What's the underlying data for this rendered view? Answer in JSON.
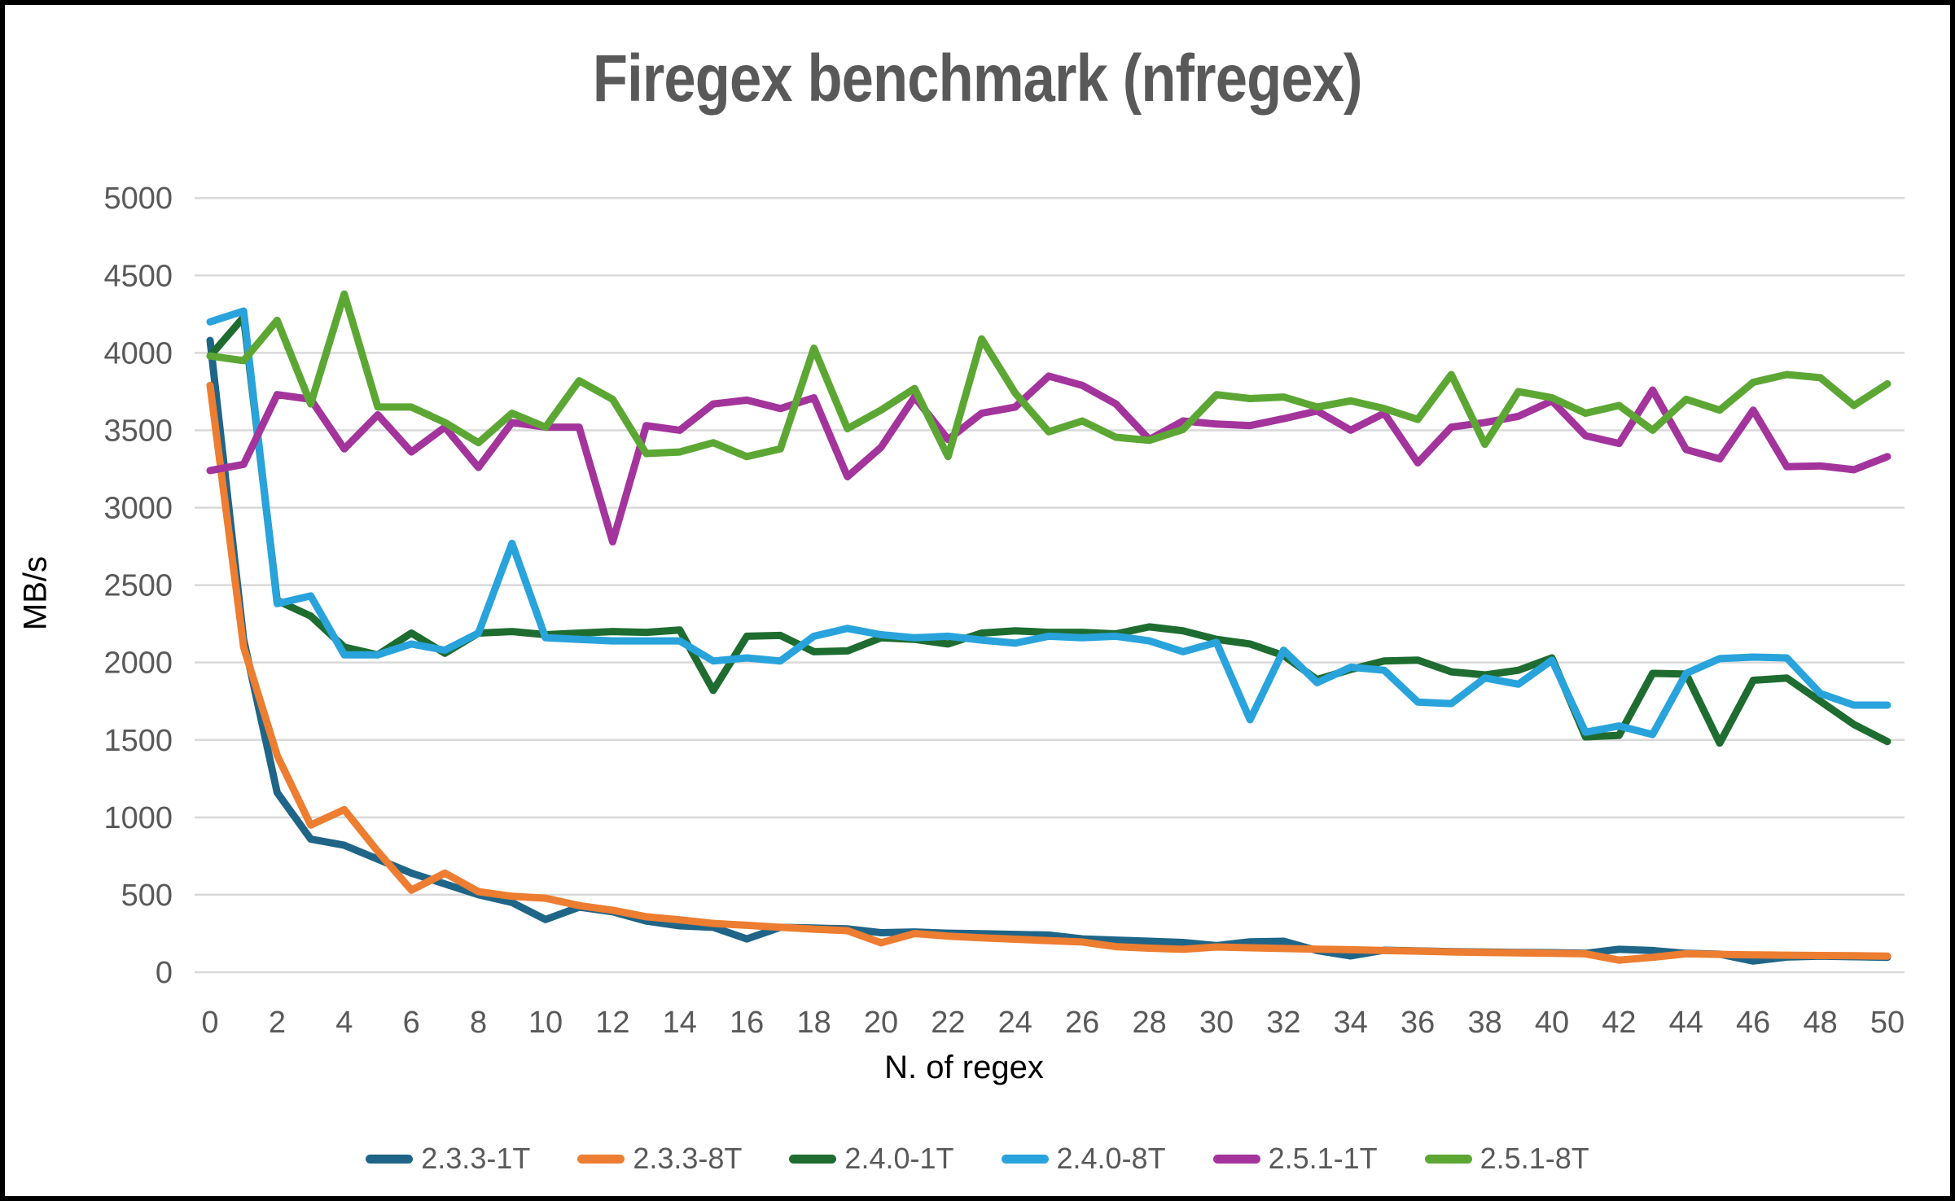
{
  "title": "Firegex benchmark (nfregex)",
  "colors": {
    "title_text": "#595959",
    "axis_tick_text": "#595959",
    "axis_title_text": "#000000",
    "gridline": "#D9D9D9",
    "frame_border": "#000000",
    "background": "#FFFFFF"
  },
  "chart_data": {
    "type": "line",
    "title": "Firegex benchmark (nfregex)",
    "xlabel": "N. of regex",
    "ylabel": "MB/s",
    "ylim": [
      0,
      5000
    ],
    "y_ticks": [
      0,
      500,
      1000,
      1500,
      2000,
      2500,
      3000,
      3500,
      4000,
      4500,
      5000
    ],
    "x_ticks": [
      0,
      2,
      4,
      6,
      8,
      10,
      12,
      14,
      16,
      18,
      20,
      22,
      24,
      26,
      28,
      30,
      32,
      34,
      36,
      38,
      40,
      42,
      44,
      46,
      48,
      50
    ],
    "x": [
      0,
      1,
      2,
      3,
      4,
      5,
      6,
      7,
      8,
      9,
      10,
      11,
      12,
      13,
      14,
      15,
      16,
      17,
      18,
      19,
      20,
      21,
      22,
      23,
      24,
      25,
      26,
      27,
      28,
      29,
      30,
      31,
      32,
      33,
      34,
      35,
      36,
      37,
      38,
      39,
      40,
      41,
      42,
      43,
      44,
      45,
      46,
      47,
      48,
      49,
      50
    ],
    "grid": true,
    "legend_position": "bottom",
    "series": [
      {
        "name": "2.3.3-1T",
        "color": "#1F6587",
        "values": [
          4080,
          2150,
          1160,
          860,
          820,
          730,
          640,
          570,
          500,
          450,
          340,
          420,
          390,
          330,
          300,
          290,
          215,
          290,
          285,
          280,
          255,
          260,
          252,
          248,
          244,
          240,
          215,
          207,
          200,
          192,
          172,
          196,
          200,
          140,
          105,
          142,
          137,
          133,
          130,
          128,
          126,
          122,
          148,
          140,
          122,
          116,
          72,
          98,
          104,
          100,
          96
        ]
      },
      {
        "name": "2.3.3-8T",
        "color": "#ED7D31",
        "values": [
          3790,
          2100,
          1400,
          950,
          1050,
          780,
          530,
          640,
          520,
          490,
          478,
          430,
          400,
          358,
          338,
          315,
          303,
          290,
          278,
          268,
          190,
          250,
          233,
          222,
          213,
          204,
          195,
          165,
          155,
          148,
          163,
          158,
          153,
          149,
          145,
          140,
          136,
          131,
          128,
          125,
          122,
          119,
          78,
          96,
          119,
          115,
          112,
          110,
          108,
          106,
          104
        ]
      },
      {
        "name": "2.4.0-1T",
        "color": "#1E6C30",
        "values": [
          3980,
          4230,
          2400,
          2300,
          2100,
          2050,
          2190,
          2060,
          2190,
          2200,
          2180,
          2190,
          2200,
          2195,
          2210,
          1820,
          2170,
          2175,
          2070,
          2075,
          2160,
          2150,
          2120,
          2190,
          2205,
          2195,
          2195,
          2185,
          2230,
          2205,
          2150,
          2120,
          2045,
          1890,
          1955,
          2010,
          2015,
          1940,
          1920,
          1950,
          2030,
          1520,
          1530,
          1930,
          1925,
          1480,
          1885,
          1900,
          1750,
          1600,
          1490
        ]
      },
      {
        "name": "2.4.0-8T",
        "color": "#29A3DC",
        "values": [
          4200,
          4270,
          2380,
          2430,
          2050,
          2050,
          2120,
          2080,
          2190,
          2770,
          2160,
          2150,
          2140,
          2140,
          2140,
          2010,
          2030,
          2010,
          2170,
          2220,
          2180,
          2160,
          2170,
          2145,
          2125,
          2170,
          2160,
          2170,
          2140,
          2070,
          2130,
          1630,
          2080,
          1870,
          1970,
          1950,
          1745,
          1735,
          1900,
          1860,
          2015,
          1550,
          1590,
          1535,
          1930,
          2025,
          2035,
          2030,
          1800,
          1725,
          1725
        ]
      },
      {
        "name": "2.5.1-1T",
        "color": "#A3349C",
        "values": [
          3240,
          3280,
          3730,
          3700,
          3380,
          3600,
          3360,
          3520,
          3260,
          3550,
          3520,
          3520,
          2780,
          3530,
          3500,
          3670,
          3695,
          3640,
          3710,
          3200,
          3390,
          3715,
          3440,
          3610,
          3650,
          3850,
          3790,
          3670,
          3440,
          3560,
          3540,
          3530,
          3575,
          3625,
          3500,
          3610,
          3290,
          3520,
          3550,
          3590,
          3690,
          3465,
          3415,
          3760,
          3375,
          3315,
          3630,
          3265,
          3270,
          3245,
          3330
        ]
      },
      {
        "name": "2.5.1-8T",
        "color": "#5CA734",
        "values": [
          3980,
          3950,
          4210,
          3670,
          4380,
          3650,
          3650,
          3550,
          3420,
          3610,
          3520,
          3820,
          3700,
          3350,
          3360,
          3420,
          3330,
          3380,
          4030,
          3510,
          3630,
          3770,
          3330,
          4090,
          3740,
          3490,
          3560,
          3455,
          3435,
          3505,
          3730,
          3705,
          3715,
          3650,
          3690,
          3640,
          3570,
          3860,
          3410,
          3750,
          3710,
          3610,
          3660,
          3500,
          3700,
          3630,
          3810,
          3860,
          3840,
          3660,
          3800
        ]
      }
    ]
  }
}
